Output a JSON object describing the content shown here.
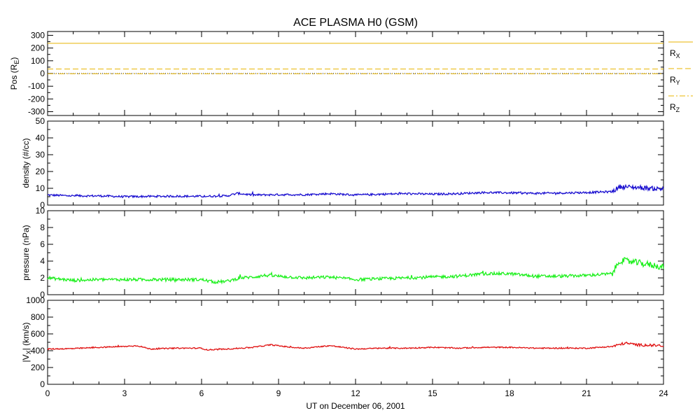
{
  "chart_data": [
    {
      "type": "line",
      "title": "ACE PLASMA H0 (GSM)",
      "ylabel": "Pos (R",
      "ylabel_sub": "E",
      "ylabel_end": ")",
      "ylim": [
        -330,
        330
      ],
      "yticks": [
        300,
        200,
        100,
        0,
        -100,
        -200,
        -300
      ],
      "series": [
        {
          "name": "R",
          "sub": "X",
          "color": "#e8b400",
          "style": "solid",
          "x": [
            0,
            24
          ],
          "values": [
            237,
            237
          ]
        },
        {
          "name": "R",
          "sub": "Y",
          "color": "#e8b400",
          "style": "dashed",
          "x": [
            0,
            24
          ],
          "values": [
            35,
            35
          ]
        },
        {
          "name": "R",
          "sub": "Z",
          "color": "#e8b400",
          "style": "dashdot",
          "x": [
            0,
            24
          ],
          "values": [
            -2,
            -2
          ]
        }
      ],
      "zero_line": {
        "value": 0,
        "color": "#000000",
        "style": "dotted"
      }
    },
    {
      "type": "line",
      "ylabel": "density (#/cc)",
      "ylim": [
        0,
        50
      ],
      "yticks": [
        50,
        40,
        30,
        20,
        10,
        0
      ],
      "series": [
        {
          "color": "#1a0fd0",
          "x": [
            0,
            1,
            2,
            3,
            4,
            5,
            6,
            7,
            7.4,
            8,
            9,
            10,
            11,
            12,
            13,
            14,
            15,
            16,
            17,
            18,
            19,
            20,
            21,
            22,
            22.3,
            23,
            24
          ],
          "values": [
            6,
            5.5,
            5.5,
            5,
            5.2,
            5.3,
            5.2,
            5.5,
            7,
            6,
            6.2,
            6.2,
            6.8,
            6,
            6.5,
            6.8,
            6.5,
            6.8,
            7.5,
            7.3,
            7,
            7.2,
            7.5,
            8,
            11,
            10.5,
            9.5
          ]
        }
      ]
    },
    {
      "type": "line",
      "ylabel": "pressure (nPa)",
      "ylim": [
        0,
        10
      ],
      "yticks": [
        10,
        8,
        6,
        4,
        2,
        0
      ],
      "series": [
        {
          "color": "#1ef01e",
          "x": [
            0,
            1,
            2,
            3,
            4,
            5,
            6,
            6.5,
            7,
            7.5,
            8,
            8.5,
            9,
            10,
            11,
            12,
            13,
            14,
            15,
            16,
            17,
            18,
            19,
            20,
            21,
            22,
            22.3,
            23,
            24
          ],
          "values": [
            2,
            1.7,
            1.8,
            1.8,
            1.8,
            1.8,
            1.8,
            1.5,
            1.6,
            2,
            2.1,
            2.3,
            2.2,
            2,
            2.1,
            1.8,
            1.9,
            2,
            2.1,
            2.2,
            2.5,
            2.5,
            2.2,
            2.2,
            2.3,
            2.5,
            4.1,
            3.8,
            3.3
          ]
        }
      ]
    },
    {
      "type": "line",
      "ylabel": "|V",
      "ylabel_sub": "X",
      "ylabel_end": "| (km/s)",
      "ylim": [
        0,
        1000
      ],
      "yticks": [
        1000,
        800,
        600,
        400,
        200,
        0
      ],
      "xlabel": "UT on December 06, 2001",
      "xlim": [
        0,
        24
      ],
      "xticks": [
        0,
        3,
        6,
        9,
        12,
        15,
        18,
        21,
        24
      ],
      "series": [
        {
          "color": "#e01010",
          "x": [
            0,
            1,
            2,
            3,
            3.5,
            4,
            5,
            6,
            6.2,
            7,
            8,
            8.7,
            9.5,
            10,
            11,
            12,
            13,
            14,
            15,
            16,
            17,
            18,
            19,
            20,
            21,
            22,
            22.5,
            23,
            24
          ],
          "values": [
            420,
            425,
            440,
            450,
            460,
            420,
            430,
            430,
            410,
            420,
            440,
            470,
            440,
            430,
            460,
            420,
            430,
            430,
            440,
            430,
            440,
            440,
            430,
            430,
            430,
            450,
            490,
            470,
            460
          ]
        }
      ]
    }
  ]
}
